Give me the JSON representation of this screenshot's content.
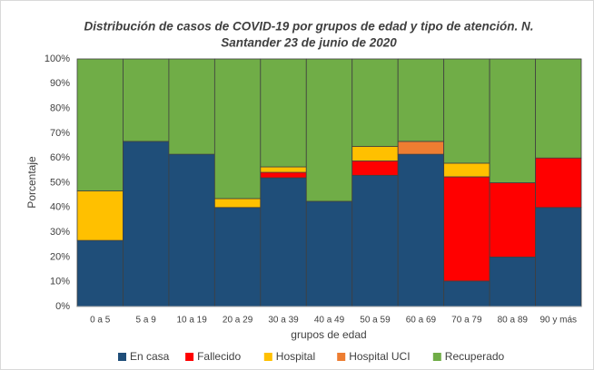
{
  "chart_data": {
    "type": "stacked_bar_100",
    "title": [
      "Distribución de casos de COVID-19 por grupos de edad y tipo de atención.  N.",
      "Santander 23 de junio de 2020"
    ],
    "xlabel": "grupos de edad",
    "ylabel": "Porcentaje",
    "categories": [
      "0 a 5",
      "5 a 9",
      "10 a 19",
      "20 a 29",
      "30 a 39",
      "40 a 49",
      "50 a 59",
      "60 a 69",
      "70 a 79",
      "80 a 89",
      "90 y más"
    ],
    "series": [
      {
        "name": "En casa",
        "color": "#1f4e79",
        "values": [
          26.7,
          66.7,
          61.5,
          40,
          52,
          42.5,
          53,
          61.5,
          10.3,
          20,
          40
        ]
      },
      {
        "name": "Fallecido",
        "color": "#ff0000",
        "values": [
          0,
          0,
          0,
          0,
          2.2,
          0,
          5.8,
          0,
          42.1,
          30,
          20
        ]
      },
      {
        "name": "Hospital",
        "color": "#ffc000",
        "values": [
          20,
          0,
          0,
          3.6,
          2.2,
          0,
          5.9,
          0,
          5.5,
          0,
          0
        ]
      },
      {
        "name": "Hospital UCI",
        "color": "#ed7d31",
        "values": [
          0,
          0,
          0,
          0,
          0,
          0,
          0,
          5.2,
          0,
          0,
          0
        ]
      },
      {
        "name": "Recuperado",
        "color": "#70ad47",
        "values": [
          53.3,
          33.3,
          38.5,
          56.4,
          43.6,
          57.5,
          35.3,
          33.3,
          42.1,
          50,
          40
        ]
      }
    ],
    "ylim": [
      0,
      100
    ],
    "yticks": [
      {
        "value": 0,
        "label": "0%"
      },
      {
        "value": 10,
        "label": "10%"
      },
      {
        "value": 20,
        "label": "20%"
      },
      {
        "value": 30,
        "label": "30%"
      },
      {
        "value": 40,
        "label": "40%"
      },
      {
        "value": 50,
        "label": "50%"
      },
      {
        "value": 60,
        "label": "60%"
      },
      {
        "value": 70,
        "label": "70%"
      },
      {
        "value": 80,
        "label": "80%"
      },
      {
        "value": 90,
        "label": "90%"
      },
      {
        "value": 100,
        "label": "100%"
      }
    ],
    "grid": true,
    "legend": "bottom"
  }
}
